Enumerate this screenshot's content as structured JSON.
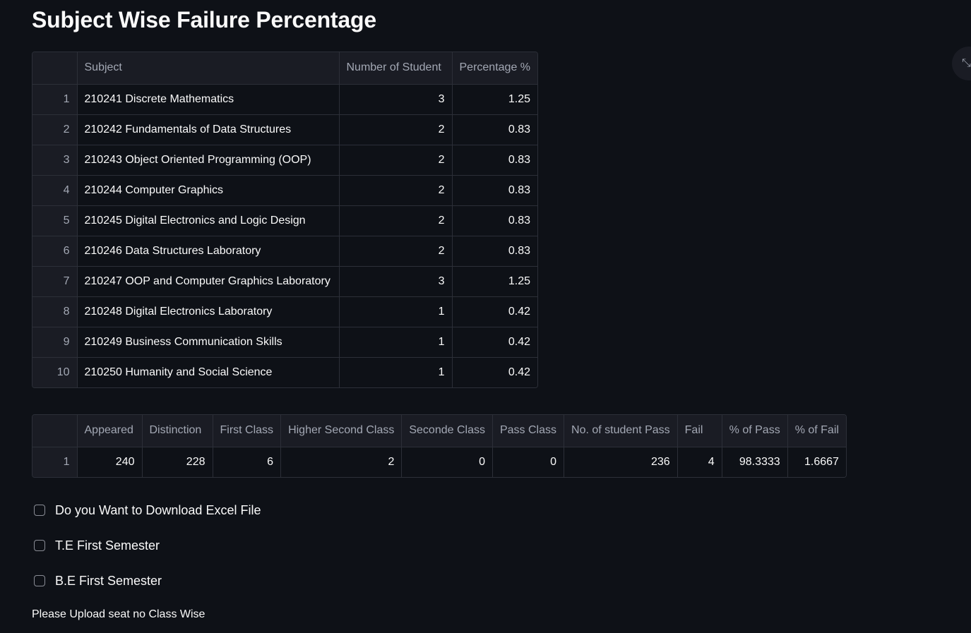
{
  "page_title": "Subject Wise Failure Percentage",
  "subject_table": {
    "columns": [
      "",
      "Subject",
      "Number of Student",
      "Percentage %"
    ],
    "rows": [
      {
        "index": "1",
        "subject": "210241 Discrete Mathematics",
        "students": "3",
        "percentage": "1.25"
      },
      {
        "index": "2",
        "subject": "210242 Fundamentals of Data Structures",
        "students": "2",
        "percentage": "0.83"
      },
      {
        "index": "3",
        "subject": "210243 Object Oriented Programming (OOP)",
        "students": "2",
        "percentage": "0.83"
      },
      {
        "index": "4",
        "subject": "210244 Computer Graphics",
        "students": "2",
        "percentage": "0.83"
      },
      {
        "index": "5",
        "subject": "210245 Digital Electronics and Logic Design",
        "students": "2",
        "percentage": "0.83"
      },
      {
        "index": "6",
        "subject": "210246 Data Structures Laboratory",
        "students": "2",
        "percentage": "0.83"
      },
      {
        "index": "7",
        "subject": "210247 OOP and Computer Graphics Laboratory",
        "students": "3",
        "percentage": "1.25"
      },
      {
        "index": "8",
        "subject": "210248 Digital Electronics Laboratory",
        "students": "1",
        "percentage": "0.42"
      },
      {
        "index": "9",
        "subject": "210249 Business Communication Skills",
        "students": "1",
        "percentage": "0.42"
      },
      {
        "index": "10",
        "subject": "210250 Humanity and Social Science",
        "students": "1",
        "percentage": "0.42"
      }
    ]
  },
  "summary_table": {
    "columns": [
      "",
      "Appeared",
      "Distinction",
      "First Class",
      "Higher Second Class",
      "Seconde Class",
      "Pass Class",
      "No. of student Pass",
      "Fail",
      "% of Pass",
      "% of Fail"
    ],
    "rows": [
      [
        "1",
        "240",
        "228",
        "6",
        "2",
        "0",
        "0",
        "236",
        "4",
        "98.3333",
        "1.6667"
      ]
    ]
  },
  "checkboxes": [
    {
      "label": "Do you Want to Download Excel File",
      "checked": false
    },
    {
      "label": "T.E First Semester",
      "checked": false
    },
    {
      "label": "B.E First Semester",
      "checked": false
    }
  ],
  "upload_label": "Please Upload seat no Class Wise",
  "icons": {
    "expand": "expand-icon"
  }
}
